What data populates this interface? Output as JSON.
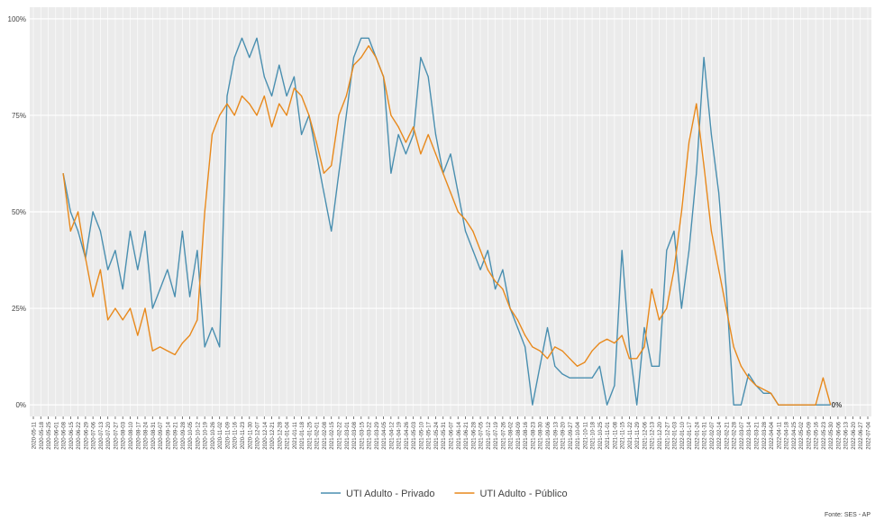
{
  "chart_data": {
    "type": "line",
    "x": [
      "2020-06-08",
      "2020-06-15",
      "2020-06-22",
      "2020-06-29",
      "2020-07-06",
      "2020-07-13",
      "2020-07-20",
      "2020-07-27",
      "2020-08-03",
      "2020-08-10",
      "2020-08-17",
      "2020-08-24",
      "2020-08-31",
      "2020-09-07",
      "2020-09-14",
      "2020-09-21",
      "2020-09-28",
      "2020-10-05",
      "2020-10-12",
      "2020-10-19",
      "2020-10-26",
      "2020-11-02",
      "2020-11-09",
      "2020-11-16",
      "2020-11-23",
      "2020-11-30",
      "2020-12-07",
      "2020-12-14",
      "2020-12-21",
      "2020-12-28",
      "2021-01-04",
      "2021-01-11",
      "2021-01-18",
      "2021-01-25",
      "2021-02-01",
      "2021-02-08",
      "2021-02-15",
      "2021-02-22",
      "2021-03-01",
      "2021-03-08",
      "2021-03-15",
      "2021-03-22",
      "2021-03-29",
      "2021-04-05",
      "2021-04-12",
      "2021-04-19",
      "2021-04-26",
      "2021-05-03",
      "2021-05-10",
      "2021-05-17",
      "2021-05-24",
      "2021-05-31",
      "2021-06-07",
      "2021-06-14",
      "2021-06-21",
      "2021-06-28",
      "2021-07-05",
      "2021-07-12",
      "2021-07-19",
      "2021-07-26",
      "2021-08-02",
      "2021-08-09",
      "2021-08-16",
      "2021-08-23",
      "2021-08-30",
      "2021-09-06",
      "2021-09-13",
      "2021-09-20",
      "2021-09-27",
      "2021-10-04",
      "2021-10-11",
      "2021-10-18",
      "2021-10-25",
      "2021-11-01",
      "2021-11-08",
      "2021-11-15",
      "2021-11-22",
      "2021-11-29",
      "2021-12-06",
      "2021-12-13",
      "2021-12-20",
      "2021-12-27",
      "2022-01-03",
      "2022-01-10",
      "2022-01-17",
      "2022-01-24",
      "2022-01-31",
      "2022-02-07",
      "2022-02-14",
      "2022-02-21",
      "2022-02-28",
      "2022-03-07",
      "2022-03-14",
      "2022-03-21",
      "2022-03-28",
      "2022-04-04",
      "2022-04-11",
      "2022-04-18",
      "2022-04-25",
      "2022-05-02",
      "2022-05-09",
      "2022-05-16",
      "2022-05-23",
      "2022-05-30"
    ],
    "series": [
      {
        "name": "UTI Adulto - Privado",
        "color": "#4a8fb0",
        "values": [
          60,
          50,
          45,
          38,
          50,
          45,
          35,
          40,
          30,
          45,
          35,
          45,
          25,
          30,
          35,
          28,
          45,
          28,
          40,
          15,
          20,
          15,
          80,
          90,
          95,
          90,
          95,
          85,
          80,
          88,
          80,
          85,
          70,
          75,
          65,
          55,
          45,
          60,
          75,
          90,
          95,
          95,
          90,
          85,
          60,
          70,
          65,
          70,
          90,
          85,
          70,
          60,
          65,
          55,
          45,
          40,
          35,
          40,
          30,
          35,
          25,
          20,
          15,
          0,
          10,
          20,
          10,
          8,
          7,
          7,
          7,
          7,
          10,
          0,
          5,
          40,
          15,
          0,
          20,
          10,
          10,
          40,
          45,
          25,
          40,
          60,
          90,
          70,
          55,
          30,
          0,
          0,
          8,
          5,
          3,
          3,
          0,
          0,
          0,
          0,
          0,
          0,
          0,
          0
        ]
      },
      {
        "name": "UTI Adulto - Público",
        "color": "#e8891c",
        "values": [
          60,
          45,
          50,
          38,
          28,
          35,
          22,
          25,
          22,
          25,
          18,
          25,
          14,
          15,
          14,
          13,
          16,
          18,
          22,
          50,
          70,
          75,
          78,
          75,
          80,
          78,
          75,
          80,
          72,
          78,
          75,
          82,
          80,
          75,
          68,
          60,
          62,
          75,
          80,
          88,
          90,
          93,
          90,
          85,
          75,
          72,
          68,
          72,
          65,
          70,
          65,
          60,
          55,
          50,
          48,
          45,
          40,
          35,
          32,
          30,
          25,
          22,
          18,
          15,
          14,
          12,
          15,
          14,
          12,
          10,
          11,
          14,
          16,
          17,
          16,
          18,
          12,
          12,
          15,
          30,
          22,
          25,
          35,
          50,
          68,
          78,
          62,
          45,
          35,
          25,
          15,
          10,
          7,
          5,
          4,
          3,
          0,
          0,
          0,
          0,
          0,
          0,
          7,
          0
        ]
      }
    ],
    "xlim": [
      "2020-05-11",
      "2022-07-04"
    ],
    "xticks": [
      "2020-05-11",
      "2020-05-18",
      "2020-05-25",
      "2020-06-01",
      "2020-06-08",
      "2020-06-15",
      "2020-06-22",
      "2020-06-29",
      "2020-07-06",
      "2020-07-13",
      "2020-07-20",
      "2020-07-27",
      "2020-08-03",
      "2020-08-10",
      "2020-08-17",
      "2020-08-24",
      "2020-08-31",
      "2020-09-07",
      "2020-09-14",
      "2020-09-21",
      "2020-09-28",
      "2020-10-05",
      "2020-10-12",
      "2020-10-19",
      "2020-10-26",
      "2020-11-02",
      "2020-11-09",
      "2020-11-16",
      "2020-11-23",
      "2020-11-30",
      "2020-12-07",
      "2020-12-14",
      "2020-12-21",
      "2020-12-28",
      "2021-01-04",
      "2021-01-11",
      "2021-01-18",
      "2021-01-25",
      "2021-02-01",
      "2021-02-08",
      "2021-02-15",
      "2021-02-22",
      "2021-03-01",
      "2021-03-08",
      "2021-03-15",
      "2021-03-22",
      "2021-03-29",
      "2021-04-05",
      "2021-04-12",
      "2021-04-19",
      "2021-04-26",
      "2021-05-03",
      "2021-05-10",
      "2021-05-17",
      "2021-05-24",
      "2021-05-31",
      "2021-06-07",
      "2021-06-14",
      "2021-06-21",
      "2021-06-28",
      "2021-07-05",
      "2021-07-12",
      "2021-07-19",
      "2021-07-26",
      "2021-08-02",
      "2021-08-09",
      "2021-08-16",
      "2021-08-23",
      "2021-08-30",
      "2021-09-06",
      "2021-09-13",
      "2021-09-20",
      "2021-09-27",
      "2021-10-04",
      "2021-10-11",
      "2021-10-18",
      "2021-10-25",
      "2021-11-01",
      "2021-11-08",
      "2021-11-15",
      "2021-11-22",
      "2021-11-29",
      "2021-12-06",
      "2021-12-13",
      "2021-12-20",
      "2021-12-27",
      "2022-01-03",
      "2022-01-10",
      "2022-01-17",
      "2022-01-24",
      "2022-01-31",
      "2022-02-07",
      "2022-02-14",
      "2022-02-21",
      "2022-02-28",
      "2022-03-07",
      "2022-03-14",
      "2022-03-21",
      "2022-03-28",
      "2022-04-04",
      "2022-04-11",
      "2022-04-18",
      "2022-04-25",
      "2022-05-02",
      "2022-05-09",
      "2022-05-16",
      "2022-05-23",
      "2022-05-30",
      "2022-06-06",
      "2022-06-13",
      "2022-06-20",
      "2022-06-27",
      "2022-07-04"
    ],
    "ylim": [
      -3,
      103
    ],
    "yticks": [
      {
        "value": 0,
        "label": "0%"
      },
      {
        "value": 25,
        "label": "25%"
      },
      {
        "value": 50,
        "label": "50%"
      },
      {
        "value": 75,
        "label": "75%"
      },
      {
        "value": 100,
        "label": "100%"
      }
    ],
    "grid": true,
    "legend": "bottom",
    "annotation": {
      "x": "2022-05-30",
      "y": 0,
      "text": "0%"
    },
    "caption": "Fonte: SES - AP"
  }
}
